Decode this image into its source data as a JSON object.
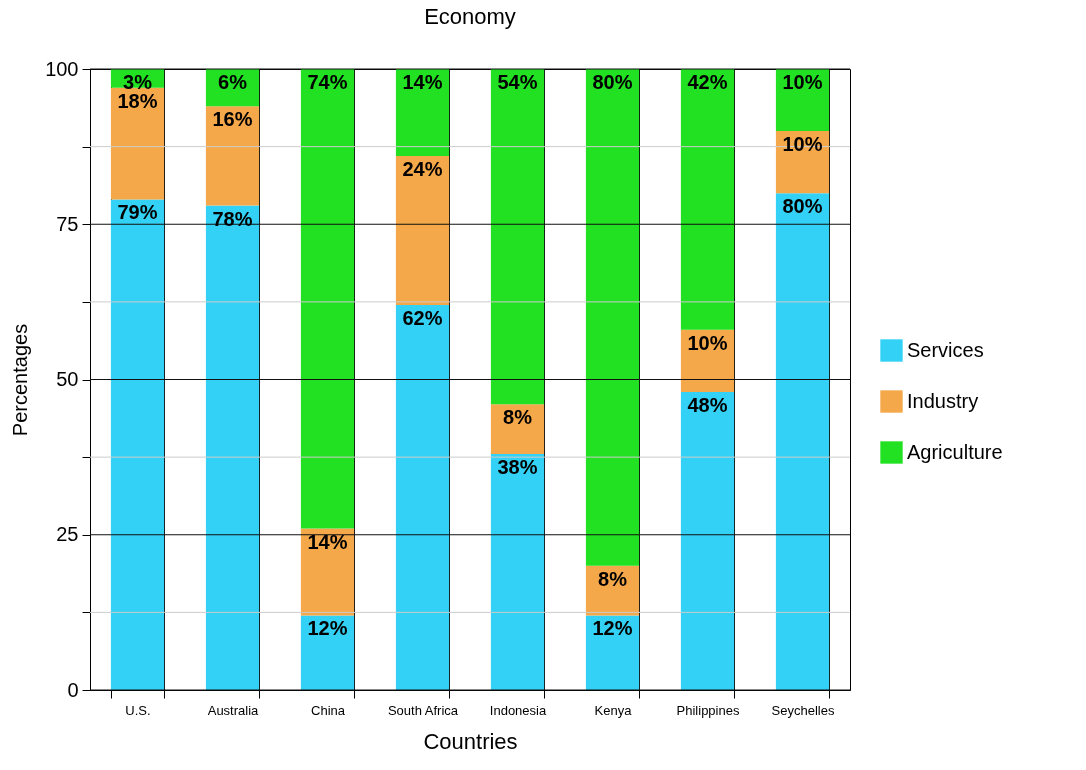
{
  "chart_data": {
    "type": "bar",
    "title": "Economy",
    "xlabel": "Countries",
    "ylabel": "Percentages",
    "categories": [
      "U.S.",
      "Australia",
      "China",
      "South Africa",
      "Indonesia",
      "Kenya",
      "Philippines",
      "Seychelles"
    ],
    "stacked": true,
    "series": [
      {
        "name": "Services",
        "color": "#33d1f5",
        "values": [
          79,
          78,
          12,
          62,
          38,
          12,
          48,
          80
        ],
        "value_labels": [
          "79%",
          "78%",
          "12%",
          "62%",
          "38%",
          "12%",
          "48%",
          "80%"
        ]
      },
      {
        "name": "Industry",
        "color": "#f5a84a",
        "values": [
          18,
          16,
          14,
          24,
          8,
          8,
          10,
          10
        ],
        "value_labels": [
          "18%",
          "16%",
          "14%",
          "24%",
          "8%",
          "8%",
          "10%",
          "10%"
        ]
      },
      {
        "name": "Agriculture",
        "color": "#22e022",
        "values": [
          3,
          6,
          74,
          14,
          54,
          80,
          42,
          10
        ],
        "value_labels": [
          "3%",
          "6%",
          "74%",
          "14%",
          "54%",
          "80%",
          "42%",
          "10%"
        ]
      }
    ],
    "ylim": [
      0,
      100
    ],
    "yticks": [
      0,
      {
        "value": 12.5,
        "label": null
      },
      25,
      {
        "value": 37.5,
        "label": null
      },
      50,
      {
        "value": 62.5,
        "label": null
      },
      75,
      {
        "value": 87.5,
        "label": null
      },
      100
    ],
    "grid": true,
    "legend": "right"
  }
}
